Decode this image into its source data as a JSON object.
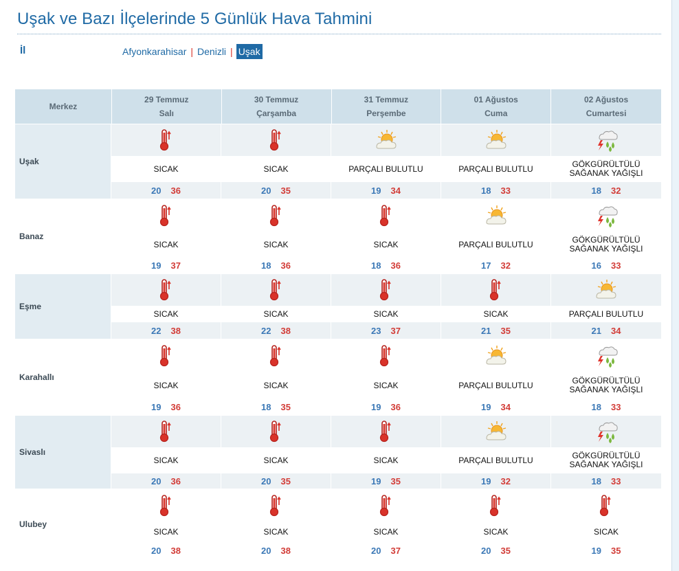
{
  "title": "Uşak ve Bazı İlçelerinde 5 Günlük Hava Tahmini",
  "province_label": "İl",
  "provinces": [
    {
      "label": "Afyonkarahisar",
      "active": false
    },
    {
      "label": "Denizli",
      "active": false
    },
    {
      "label": "Uşak",
      "active": true
    }
  ],
  "separator": "|",
  "table": {
    "header_label": "Merkez",
    "days": [
      {
        "date": "29 Temmuz",
        "weekday": "Salı"
      },
      {
        "date": "30 Temmuz",
        "weekday": "Çarşamba"
      },
      {
        "date": "31 Temmuz",
        "weekday": "Perşembe"
      },
      {
        "date": "01 Ağustos",
        "weekday": "Cuma"
      },
      {
        "date": "02 Ağustos",
        "weekday": "Cumartesi"
      }
    ],
    "rows": [
      {
        "name": "Uşak",
        "cells": [
          {
            "icon": "hot-thermometer-icon",
            "text": "SICAK",
            "low": "20",
            "high": "36"
          },
          {
            "icon": "hot-thermometer-icon",
            "text": "SICAK",
            "low": "20",
            "high": "35"
          },
          {
            "icon": "partly-cloudy-icon",
            "text": "PARÇALI BULUTLU",
            "low": "19",
            "high": "34"
          },
          {
            "icon": "partly-cloudy-icon",
            "text": "PARÇALI BULUTLU",
            "low": "18",
            "high": "33"
          },
          {
            "icon": "thunder-shower-icon",
            "text": "GÖKGÜRÜLTÜLÜ SAĞANAK YAĞIŞLI",
            "low": "18",
            "high": "32"
          }
        ]
      },
      {
        "name": "Banaz",
        "cells": [
          {
            "icon": "hot-thermometer-icon",
            "text": "SICAK",
            "low": "19",
            "high": "37"
          },
          {
            "icon": "hot-thermometer-icon",
            "text": "SICAK",
            "low": "18",
            "high": "36"
          },
          {
            "icon": "hot-thermometer-icon",
            "text": "SICAK",
            "low": "18",
            "high": "36"
          },
          {
            "icon": "partly-cloudy-icon",
            "text": "PARÇALI BULUTLU",
            "low": "17",
            "high": "32"
          },
          {
            "icon": "thunder-shower-icon",
            "text": "GÖKGÜRÜLTÜLÜ SAĞANAK YAĞIŞLI",
            "low": "16",
            "high": "33"
          }
        ]
      },
      {
        "name": "Eşme",
        "cells": [
          {
            "icon": "hot-thermometer-icon",
            "text": "SICAK",
            "low": "22",
            "high": "38"
          },
          {
            "icon": "hot-thermometer-icon",
            "text": "SICAK",
            "low": "22",
            "high": "38"
          },
          {
            "icon": "hot-thermometer-icon",
            "text": "SICAK",
            "low": "23",
            "high": "37"
          },
          {
            "icon": "hot-thermometer-icon",
            "text": "SICAK",
            "low": "21",
            "high": "35"
          },
          {
            "icon": "partly-cloudy-icon",
            "text": "PARÇALI BULUTLU",
            "low": "21",
            "high": "34"
          }
        ]
      },
      {
        "name": "Karahallı",
        "cells": [
          {
            "icon": "hot-thermometer-icon",
            "text": "SICAK",
            "low": "19",
            "high": "36"
          },
          {
            "icon": "hot-thermometer-icon",
            "text": "SICAK",
            "low": "18",
            "high": "35"
          },
          {
            "icon": "hot-thermometer-icon",
            "text": "SICAK",
            "low": "19",
            "high": "36"
          },
          {
            "icon": "partly-cloudy-icon",
            "text": "PARÇALI BULUTLU",
            "low": "19",
            "high": "34"
          },
          {
            "icon": "thunder-shower-icon",
            "text": "GÖKGÜRÜLTÜLÜ SAĞANAK YAĞIŞLI",
            "low": "18",
            "high": "33"
          }
        ]
      },
      {
        "name": "Sivaslı",
        "cells": [
          {
            "icon": "hot-thermometer-icon",
            "text": "SICAK",
            "low": "20",
            "high": "36"
          },
          {
            "icon": "hot-thermometer-icon",
            "text": "SICAK",
            "low": "20",
            "high": "35"
          },
          {
            "icon": "hot-thermometer-icon",
            "text": "SICAK",
            "low": "19",
            "high": "35"
          },
          {
            "icon": "partly-cloudy-icon",
            "text": "PARÇALI BULUTLU",
            "low": "19",
            "high": "32"
          },
          {
            "icon": "thunder-shower-icon",
            "text": "GÖKGÜRÜLTÜLÜ SAĞANAK YAĞIŞLI",
            "low": "18",
            "high": "33"
          }
        ]
      },
      {
        "name": "Ulubey",
        "cells": [
          {
            "icon": "hot-thermometer-icon",
            "text": "SICAK",
            "low": "20",
            "high": "38"
          },
          {
            "icon": "hot-thermometer-icon",
            "text": "SICAK",
            "low": "20",
            "high": "38"
          },
          {
            "icon": "hot-thermometer-icon",
            "text": "SICAK",
            "low": "20",
            "high": "37"
          },
          {
            "icon": "hot-thermometer-icon",
            "text": "SICAK",
            "low": "20",
            "high": "35"
          },
          {
            "icon": "hot-thermometer-icon",
            "text": "SICAK",
            "low": "19",
            "high": "35"
          }
        ]
      }
    ]
  },
  "colors": {
    "title": "#1f6aa5",
    "header_bg": "#cfe0ea",
    "low_temp": "#3b78b6",
    "high_temp": "#d23c37"
  }
}
